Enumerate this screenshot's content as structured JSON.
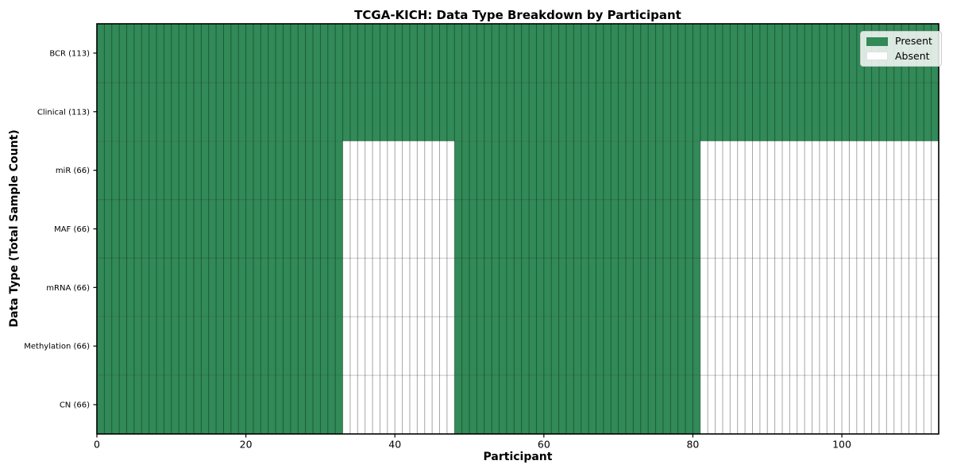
{
  "title": "TCGA-KICH: Data Type Breakdown by Participant",
  "chart_data": {
    "type": "heatmap",
    "title": "TCGA-KICH: Data Type Breakdown by Participant",
    "xlabel": "Participant",
    "ylabel": "Data Type (Total Sample Count)",
    "xlim": [
      0,
      113
    ],
    "n_participants": 113,
    "x_ticks": [
      0,
      20,
      40,
      60,
      80,
      100
    ],
    "grid": "cell-borders",
    "legend_position": "upper-right",
    "legend": [
      {
        "label": "Present",
        "color": "#318a57"
      },
      {
        "label": "Absent",
        "color": "#ffffff"
      }
    ],
    "rows": [
      {
        "label": "BCR (113)",
        "total_samples": 113,
        "present_ranges": [
          [
            0,
            113
          ]
        ]
      },
      {
        "label": "Clinical (113)",
        "total_samples": 113,
        "present_ranges": [
          [
            0,
            113
          ]
        ]
      },
      {
        "label": "miR (66)",
        "total_samples": 66,
        "present_ranges": [
          [
            0,
            33
          ],
          [
            48,
            81
          ]
        ]
      },
      {
        "label": "MAF (66)",
        "total_samples": 66,
        "present_ranges": [
          [
            0,
            33
          ],
          [
            48,
            81
          ]
        ]
      },
      {
        "label": "mRNA (66)",
        "total_samples": 66,
        "present_ranges": [
          [
            0,
            33
          ],
          [
            48,
            81
          ]
        ]
      },
      {
        "label": "Methylation (66)",
        "total_samples": 66,
        "present_ranges": [
          [
            0,
            33
          ],
          [
            48,
            81
          ]
        ]
      },
      {
        "label": "CN (66)",
        "total_samples": 66,
        "present_ranges": [
          [
            0,
            33
          ],
          [
            48,
            81
          ]
        ]
      }
    ],
    "colors": {
      "present": "#318a57",
      "absent": "#ffffff",
      "cell_divider_vertical": "rgba(0,0,0,0.35)",
      "row_divider_horizontal": "rgba(0,0,0,0.22)",
      "spine": "#000000",
      "text": "#000000"
    }
  }
}
